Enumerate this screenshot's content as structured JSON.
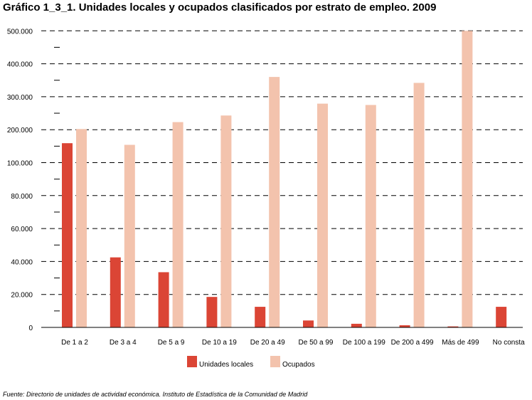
{
  "title": "Gráfico 1_3_1. Unidades locales y ocupados clasificados por estrato de empleo. 2009",
  "source": "Fuente: Directorio de unidades de actividad económica. Instituto de Estadística de la Comunidad de Madrid",
  "chart_data": {
    "type": "bar",
    "scale": "piecewise-linear (0–100.000 in steps of 20.000, then 100.000–500.000 in steps of 100.000)",
    "categories": [
      "De 1 a 2",
      "De 3 a 4",
      "De 5 a 9",
      "De 10 a 19",
      "De 20 a 49",
      "De 50 a 99",
      "De 100 a 199",
      "De 200 a 499",
      "Más de 499",
      "No consta"
    ],
    "y_ticks": [
      {
        "label": "0",
        "value": 0
      },
      {
        "label": "20.000",
        "value": 20000
      },
      {
        "label": "40.000",
        "value": 40000
      },
      {
        "label": "60.000",
        "value": 60000
      },
      {
        "label": "80.000",
        "value": 80000
      },
      {
        "label": "100.000",
        "value": 100000
      },
      {
        "label": "200.000",
        "value": 200000
      },
      {
        "label": "300.000",
        "value": 300000
      },
      {
        "label": "400.000",
        "value": 400000
      },
      {
        "label": "500.000",
        "value": 500000
      }
    ],
    "series": [
      {
        "name": "Unidades locales",
        "color": "#db4535",
        "values": [
          159000,
          42500,
          33500,
          18500,
          12500,
          4200,
          2200,
          1300,
          600,
          12500
        ]
      },
      {
        "name": "Ocupados",
        "color": "#f3c3ad",
        "values": [
          202000,
          154000,
          223000,
          243000,
          360000,
          279000,
          275000,
          342000,
          500000,
          0
        ]
      }
    ],
    "legend_position": "bottom",
    "grid": "dashed horizontal lines at labeled ticks"
  }
}
